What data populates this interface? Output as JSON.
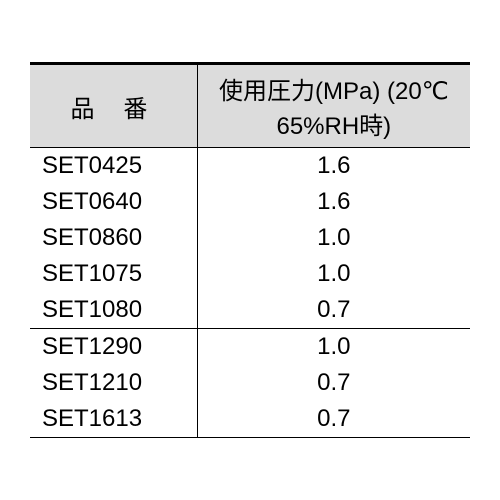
{
  "table": {
    "borderColor": "#000000",
    "headerBg": "#dcdcdc",
    "fontSize": 24,
    "headers": {
      "part": "品番",
      "pressure": "使用圧力(MPa) (20℃ 65%RH時)"
    },
    "groups": [
      {
        "rows": [
          {
            "part": "SET0425",
            "pressure": "1.6"
          },
          {
            "part": "SET0640",
            "pressure": "1.6"
          },
          {
            "part": "SET0860",
            "pressure": "1.0"
          },
          {
            "part": "SET1075",
            "pressure": "1.0"
          },
          {
            "part": "SET1080",
            "pressure": "0.7"
          }
        ]
      },
      {
        "rows": [
          {
            "part": "SET1290",
            "pressure": "1.0"
          },
          {
            "part": "SET1210",
            "pressure": "0.7"
          },
          {
            "part": "SET1613",
            "pressure": "0.7"
          }
        ]
      }
    ]
  }
}
